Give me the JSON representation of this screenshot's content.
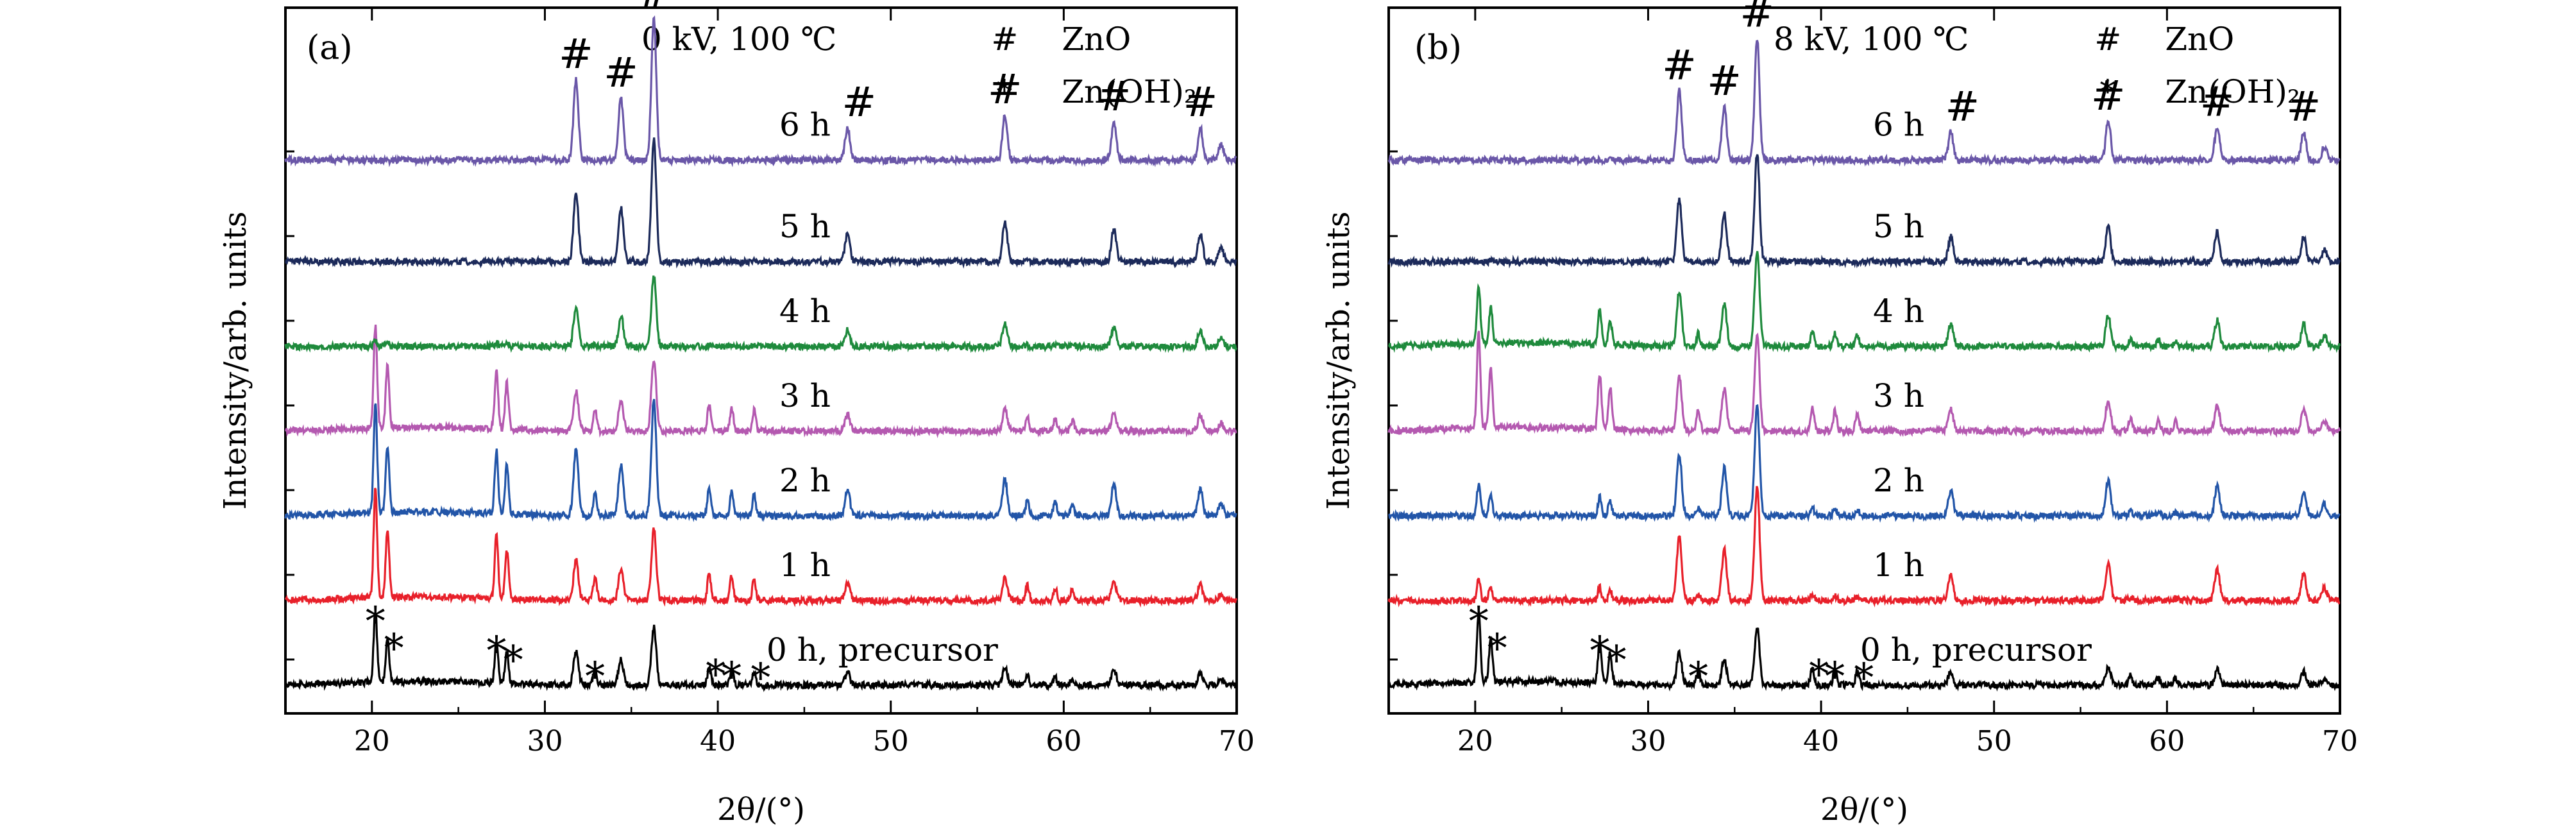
{
  "chart_data": [
    {
      "type": "line",
      "panel_label": "(a)",
      "condition": "0 kV, 100 ℃",
      "xlabel": "2θ/(°)",
      "ylabel": "Intensity/arb. units",
      "xlim": [
        15,
        70
      ],
      "x_ticks": [
        20,
        30,
        40,
        50,
        60,
        70
      ],
      "legend": [
        {
          "symbol": "#",
          "label": "ZnO"
        },
        {
          "symbol": "*",
          "label": "Zn(OH)₂"
        }
      ],
      "series": [
        {
          "name": "0 h, precursor",
          "color": "#000000",
          "baseline": 0,
          "zno": 0.45,
          "znoh2": 0.55
        },
        {
          "name": "1 h",
          "color": "#e8202a",
          "baseline": 1,
          "zno": 0.55,
          "znoh2": 0.85
        },
        {
          "name": "2 h",
          "color": "#2255a8",
          "baseline": 2,
          "zno": 0.9,
          "znoh2": 0.85
        },
        {
          "name": "3 h",
          "color": "#b459b0",
          "baseline": 3,
          "zno": 0.55,
          "znoh2": 0.8
        },
        {
          "name": "4 h",
          "color": "#1e8a3c",
          "baseline": 4,
          "zno": 0.55,
          "znoh2": 0.05
        },
        {
          "name": "5 h",
          "color": "#1c2a5a",
          "baseline": 5,
          "zno": 0.95,
          "znoh2": 0.0
        },
        {
          "name": "6 h",
          "color": "#6a57a8",
          "baseline": 6.2,
          "zno": 1.1,
          "znoh2": 0.0
        }
      ],
      "zno_peaks": [
        31.8,
        34.4,
        36.3,
        47.5,
        56.6,
        62.9,
        67.9,
        69.1
      ],
      "zno_rel": [
        0.57,
        0.44,
        1.0,
        0.23,
        0.32,
        0.27,
        0.23,
        0.11
      ],
      "znoh2_peaks": [
        20.2,
        20.9,
        27.2,
        27.8,
        32.9,
        39.5,
        40.8,
        42.1,
        57.9,
        59.5,
        60.5
      ],
      "znoh2_rel": [
        1.0,
        0.62,
        0.58,
        0.45,
        0.22,
        0.25,
        0.22,
        0.2,
        0.14,
        0.12,
        0.1
      ],
      "zno_marks": [
        31.8,
        34.4,
        36.3,
        47.5,
        56.6,
        62.9,
        67.9
      ],
      "znoh2_marks": [
        20.2,
        20.9,
        27.2,
        27.8,
        32.9,
        39.5,
        40.8,
        42.1
      ]
    },
    {
      "type": "line",
      "panel_label": "(b)",
      "condition": "8 kV, 100 ℃",
      "xlabel": "2θ/(°)",
      "ylabel": "Intensity/arb. units",
      "xlim": [
        15,
        70
      ],
      "x_ticks": [
        20,
        30,
        40,
        50,
        60,
        70
      ],
      "legend": [
        {
          "symbol": "#",
          "label": "ZnO"
        },
        {
          "symbol": "*",
          "label": "Zn(OH)₂"
        }
      ],
      "series": [
        {
          "name": "0 h,    precursor",
          "color": "#000000",
          "baseline": 0,
          "zno": 0.45,
          "znoh2": 0.55
        },
        {
          "name": "1 h",
          "color": "#e8202a",
          "baseline": 1,
          "zno": 0.9,
          "znoh2": 0.18
        },
        {
          "name": "2 h",
          "color": "#2255a8",
          "baseline": 2,
          "zno": 0.85,
          "znoh2": 0.25
        },
        {
          "name": "3 h",
          "color": "#b459b0",
          "baseline": 3,
          "zno": 0.75,
          "znoh2": 0.75
        },
        {
          "name": "4 h",
          "color": "#1e8a3c",
          "baseline": 4,
          "zno": 0.75,
          "znoh2": 0.45
        },
        {
          "name": "5 h",
          "color": "#1c2a5a",
          "baseline": 5,
          "zno": 0.85,
          "znoh2": 0.0
        },
        {
          "name": "6 h",
          "color": "#6a57a8",
          "baseline": 6.2,
          "zno": 0.95,
          "znoh2": 0.0
        }
      ],
      "zno_peaks": [
        31.8,
        34.4,
        36.3,
        47.5,
        56.6,
        62.9,
        67.9,
        69.1
      ],
      "zno_rel": [
        0.57,
        0.44,
        1.0,
        0.23,
        0.32,
        0.27,
        0.23,
        0.11
      ],
      "znoh2_peaks": [
        20.2,
        20.9,
        27.2,
        27.8,
        32.9,
        39.5,
        40.8,
        42.1,
        57.9,
        59.5,
        60.5
      ],
      "znoh2_rel": [
        1.0,
        0.62,
        0.58,
        0.45,
        0.22,
        0.25,
        0.22,
        0.2,
        0.14,
        0.12,
        0.1
      ],
      "zno_marks": [
        31.8,
        34.4,
        36.3,
        47.5,
        56.6,
        62.9,
        67.9
      ],
      "znoh2_marks": [
        20.2,
        20.9,
        27.2,
        27.8,
        32.9,
        39.5,
        40.8,
        42.1
      ]
    }
  ]
}
